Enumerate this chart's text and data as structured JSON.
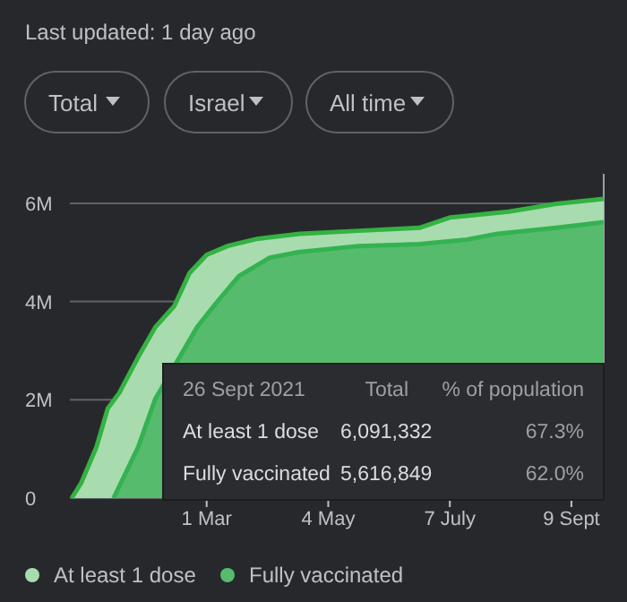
{
  "chart_data": {
    "type": "area",
    "subtitle": "Last updated: 1 day ago",
    "annotations": [
      "Total",
      "Israel",
      "All time",
      "26 Sept 2021",
      "Total",
      "% of population",
      "At least 1 dose",
      "6,091,332",
      "67.3%",
      "Fully vaccinated",
      "5,616,849",
      "62.0%"
    ],
    "xlim": [
      "2020-12-19",
      "2021-09-26"
    ],
    "xticks": [
      {
        "value": "2021-03-01",
        "label": "1 Mar"
      },
      {
        "value": "2021-05-04",
        "label": "4 May"
      },
      {
        "value": "2021-07-07",
        "label": "7 July"
      },
      {
        "value": "2021-09-09",
        "label": "9 Sept"
      }
    ],
    "ylim": [
      0,
      6600000
    ],
    "yticks": [
      {
        "value": 0,
        "label": "0"
      },
      {
        "value": 2000000,
        "label": "2M"
      },
      {
        "value": 4000000,
        "label": "4M"
      },
      {
        "value": 6000000,
        "label": "6M"
      }
    ],
    "grid": "y",
    "legend": "bottom",
    "series": [
      {
        "name": "At least 1 dose",
        "color": "#a8dcae",
        "x": [
          "2020-12-20",
          "2020-12-25",
          "2021-01-02",
          "2021-01-08",
          "2021-01-14",
          "2021-01-24",
          "2021-02-02",
          "2021-02-12",
          "2021-02-20",
          "2021-03-01",
          "2021-03-12",
          "2021-03-28",
          "2021-04-19",
          "2021-05-20",
          "2021-06-21",
          "2021-07-07",
          "2021-08-07",
          "2021-09-01",
          "2021-09-26"
        ],
        "values": [
          0,
          310000,
          1040000,
          1830000,
          2140000,
          2870000,
          3480000,
          3910000,
          4580000,
          4950000,
          5130000,
          5280000,
          5380000,
          5440000,
          5500000,
          5710000,
          5830000,
          5990000,
          6091332
        ]
      },
      {
        "name": "Fully vaccinated",
        "color": "#57bb6e",
        "x": [
          "2021-01-11",
          "2021-01-24",
          "2021-02-02",
          "2021-02-24",
          "2021-03-06",
          "2021-03-18",
          "2021-04-03",
          "2021-04-19",
          "2021-05-20",
          "2021-06-21",
          "2021-07-16",
          "2021-08-01",
          "2021-09-01",
          "2021-09-26"
        ],
        "values": [
          0,
          1040000,
          2020000,
          3480000,
          3970000,
          4520000,
          4890000,
          5010000,
          5130000,
          5170000,
          5260000,
          5380000,
          5500000,
          5616849
        ]
      }
    ]
  }
}
